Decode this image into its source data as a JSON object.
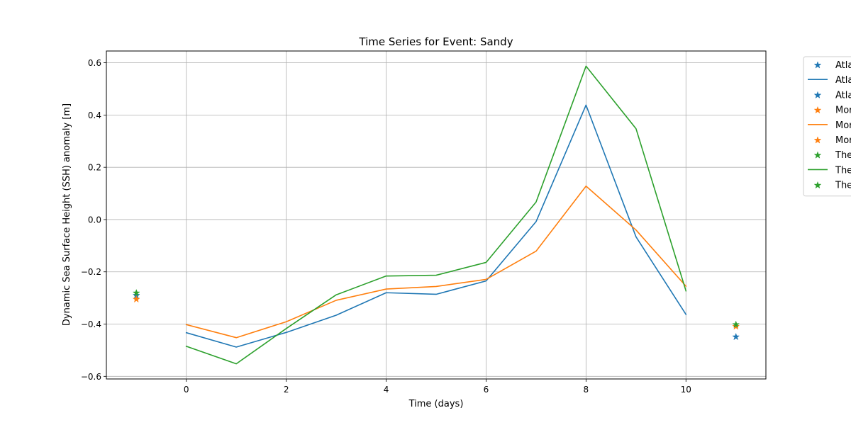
{
  "chart_data": {
    "type": "line",
    "title": "Time Series for Event: Sandy",
    "xlabel": "Time (days)",
    "ylabel": "Dynamic Sea Surface Height (SSH) anomaly [m]",
    "xlim": [
      -1.6,
      11.6
    ],
    "ylim": [
      -0.61,
      0.645
    ],
    "xticks": [
      0,
      2,
      4,
      6,
      8,
      10
    ],
    "yticks": [
      -0.6,
      -0.4,
      -0.2,
      0.0,
      0.2,
      0.4,
      0.6
    ],
    "ytick_labels": [
      "−0.6",
      "−0.4",
      "−0.2",
      "0.0",
      "0.2",
      "0.4",
      "0.6"
    ],
    "grid": true,
    "legend_position": "outside-right",
    "x": [
      0,
      1,
      2,
      3,
      4,
      5,
      6,
      7,
      8,
      9,
      10
    ],
    "series": [
      {
        "color": "#1f77b4",
        "values": [
          -0.433,
          -0.488,
          -0.432,
          -0.366,
          -0.28,
          -0.286,
          -0.235,
          -0.008,
          0.438,
          -0.066,
          -0.363
        ],
        "start_marker": {
          "x": -1,
          "y": -0.29
        },
        "end_marker": {
          "x": 11,
          "y": -0.449
        }
      },
      {
        "color": "#ff7f0e",
        "values": [
          -0.402,
          -0.452,
          -0.391,
          -0.309,
          -0.266,
          -0.256,
          -0.229,
          -0.121,
          0.128,
          -0.04,
          -0.255
        ],
        "start_marker": {
          "x": -1,
          "y": -0.305
        },
        "end_marker": {
          "x": 11,
          "y": -0.409
        }
      },
      {
        "color": "#2ca02c",
        "values": [
          -0.485,
          -0.552,
          -0.417,
          -0.288,
          -0.216,
          -0.213,
          -0.164,
          0.067,
          0.587,
          0.348,
          -0.273
        ],
        "start_marker": {
          "x": -1,
          "y": -0.281
        },
        "end_marker": {
          "x": 11,
          "y": -0.402
        }
      }
    ]
  },
  "legend": {
    "entries": [
      {
        "label": "Atla",
        "kind": "marker",
        "color": "#1f77b4"
      },
      {
        "label": "Atla",
        "kind": "line",
        "color": "#1f77b4"
      },
      {
        "label": "Atla",
        "kind": "marker",
        "color": "#1f77b4"
      },
      {
        "label": "Mor",
        "kind": "marker",
        "color": "#ff7f0e"
      },
      {
        "label": "Mor",
        "kind": "line",
        "color": "#ff7f0e"
      },
      {
        "label": "Mor",
        "kind": "marker",
        "color": "#ff7f0e"
      },
      {
        "label": "The",
        "kind": "marker",
        "color": "#2ca02c"
      },
      {
        "label": "The",
        "kind": "line",
        "color": "#2ca02c"
      },
      {
        "label": "The",
        "kind": "marker",
        "color": "#2ca02c"
      }
    ]
  }
}
